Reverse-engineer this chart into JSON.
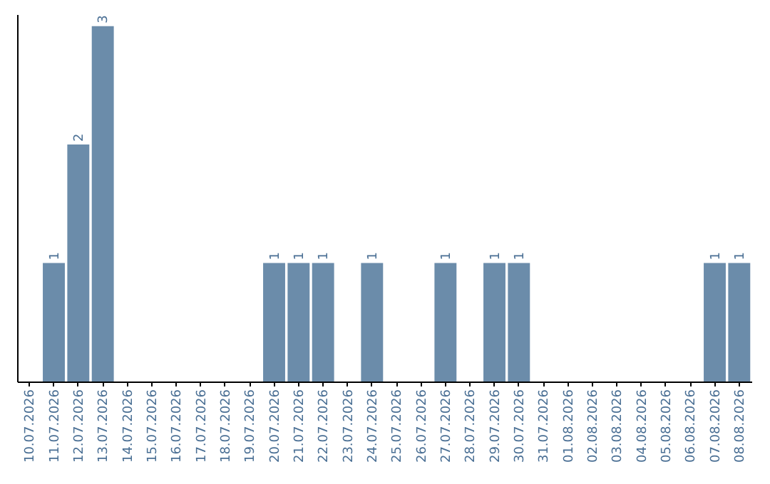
{
  "chart_data": {
    "type": "bar",
    "categories": [
      "10.07.2026",
      "11.07.2026",
      "12.07.2026",
      "13.07.2026",
      "14.07.2026",
      "15.07.2026",
      "16.07.2026",
      "17.07.2026",
      "18.07.2026",
      "19.07.2026",
      "20.07.2026",
      "21.07.2026",
      "22.07.2026",
      "23.07.2026",
      "24.07.2026",
      "25.07.2026",
      "26.07.2026",
      "27.07.2026",
      "28.07.2026",
      "29.07.2026",
      "30.07.2026",
      "31.07.2026",
      "01.08.2026",
      "02.08.2026",
      "03.08.2026",
      "04.08.2026",
      "05.08.2026",
      "06.08.2026",
      "07.08.2026",
      "08.08.2026"
    ],
    "values": [
      null,
      1,
      2,
      3,
      null,
      null,
      null,
      null,
      null,
      null,
      1,
      1,
      1,
      null,
      1,
      null,
      null,
      1,
      null,
      1,
      1,
      null,
      null,
      null,
      null,
      null,
      null,
      null,
      1,
      1
    ],
    "color": "#6b8caa",
    "ylim": [
      0,
      3.1
    ],
    "data_labels": true,
    "grid": false,
    "tick_labels": "x"
  }
}
